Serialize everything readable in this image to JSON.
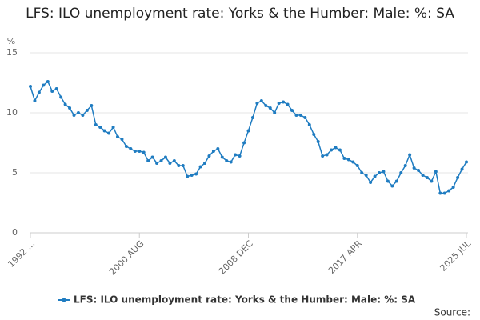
{
  "chart_data": {
    "type": "line",
    "title": "LFS: ILO unemployment rate: Yorks & the Humber: Male: %: SA",
    "y_label": "%",
    "source": "Source:",
    "categories": [
      "1992 ...",
      null,
      null,
      null,
      null,
      null,
      null,
      null,
      null,
      null,
      null,
      null,
      null,
      null,
      null,
      null,
      null,
      null,
      null,
      null,
      null,
      null,
      null,
      null,
      null,
      "2000 AUG",
      null,
      null,
      null,
      null,
      null,
      null,
      null,
      null,
      null,
      null,
      null,
      null,
      null,
      null,
      null,
      null,
      null,
      null,
      null,
      null,
      null,
      null,
      null,
      null,
      "2008 DEC",
      null,
      null,
      null,
      null,
      null,
      null,
      null,
      null,
      null,
      null,
      null,
      null,
      null,
      null,
      null,
      null,
      null,
      null,
      null,
      null,
      null,
      null,
      null,
      null,
      "2017 APR",
      null,
      null,
      null,
      null,
      null,
      null,
      null,
      null,
      null,
      null,
      null,
      null,
      null,
      null,
      null,
      null,
      null,
      null,
      null,
      null,
      null,
      null,
      null,
      null,
      "2025 JUL"
    ],
    "series": [
      {
        "name": "LFS: ILO unemployment rate: Yorks & the Humber: Male: %: SA",
        "color": "#1f7cc1",
        "values": [
          12.2,
          11.0,
          11.7,
          12.3,
          12.6,
          11.8,
          12.0,
          11.3,
          10.7,
          10.4,
          9.8,
          10.0,
          9.8,
          10.2,
          10.6,
          9.0,
          8.8,
          8.5,
          8.3,
          8.8,
          8.0,
          7.8,
          7.2,
          7.0,
          6.8,
          6.8,
          6.7,
          6.0,
          6.3,
          5.8,
          6.0,
          6.3,
          5.8,
          6.0,
          5.6,
          5.6,
          4.7,
          4.8,
          4.9,
          5.5,
          5.8,
          6.4,
          6.8,
          7.0,
          6.3,
          6.0,
          5.9,
          6.5,
          6.4,
          7.5,
          8.5,
          9.6,
          10.8,
          11.0,
          10.6,
          10.4,
          10.0,
          10.8,
          10.9,
          10.7,
          10.2,
          9.8,
          9.8,
          9.6,
          9.0,
          8.2,
          7.6,
          6.4,
          6.5,
          6.9,
          7.1,
          6.9,
          6.2,
          6.1,
          5.9,
          5.6,
          5.0,
          4.8,
          4.2,
          4.7,
          5.0,
          5.1,
          4.3,
          3.9,
          4.3,
          5.0,
          5.6,
          6.5,
          5.4,
          5.2,
          4.8,
          4.6,
          4.3,
          5.1,
          3.3,
          3.3,
          3.5,
          3.8,
          4.6,
          5.3,
          5.9
        ]
      }
    ],
    "ylim": [
      0,
      15
    ],
    "yticks": [
      0,
      5,
      10,
      15
    ],
    "grid": true
  }
}
